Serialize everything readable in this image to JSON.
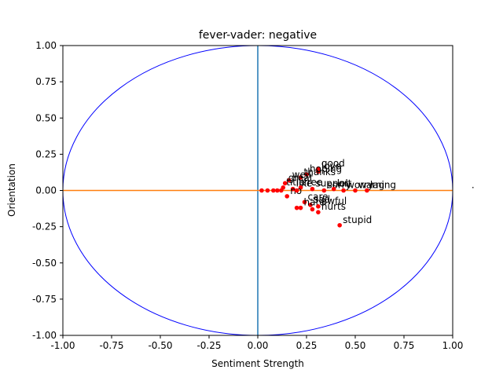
{
  "chart_data": {
    "type": "scatter",
    "title": "fever-vader: negative",
    "xlabel": "Sentiment Strength",
    "ylabel": "Orientation",
    "xlim": [
      -1.0,
      1.0
    ],
    "ylim": [
      -1.0,
      1.0
    ],
    "x_ticks": [
      "-1.00",
      "-0.75",
      "-0.50",
      "-0.25",
      "0.00",
      "0.25",
      "0.50",
      "0.75",
      "1.00"
    ],
    "y_ticks": [
      "1.00",
      "0.75",
      "0.50",
      "0.25",
      "0.00",
      "-0.25",
      "-0.50",
      "-0.75",
      "-1.00"
    ],
    "grid": false,
    "legend": "none",
    "reference": {
      "unit_circle": true,
      "circle_color": "#0000ff",
      "vertical_line": {
        "x": 0,
        "color": "#1f77b4"
      },
      "horizontal_line": {
        "y": 0,
        "color": "#ff7f0e"
      }
    },
    "marker_color": "#ff0000",
    "points": [
      {
        "x": 0.31,
        "y": 0.15,
        "label": "good"
      },
      {
        "x": 0.31,
        "y": 0.13,
        "label": "love"
      },
      {
        "x": 0.25,
        "y": 0.11,
        "label": "hoping"
      },
      {
        "x": 0.22,
        "y": 0.09,
        "label": "thanks"
      },
      {
        "x": 0.16,
        "y": 0.07,
        "label": "well"
      },
      {
        "x": 0.14,
        "y": 0.05,
        "label": "great"
      },
      {
        "x": 0.13,
        "y": 0.02,
        "label": "title"
      },
      {
        "x": 0.18,
        "y": 0.01,
        "label": "like"
      },
      {
        "x": 0.22,
        "y": 0.02,
        "label": "free"
      },
      {
        "x": 0.28,
        "y": 0.01,
        "label": "support"
      },
      {
        "x": 0.34,
        "y": 0.0,
        "label": "sorry"
      },
      {
        "x": 0.39,
        "y": 0.01,
        "label": "lol"
      },
      {
        "x": 0.44,
        "y": 0.0,
        "label": "worry"
      },
      {
        "x": 0.5,
        "y": 0.0,
        "label": "warning"
      },
      {
        "x": 0.56,
        "y": 0.0,
        "label": "lag"
      },
      {
        "x": 1.08,
        "y": 0.0,
        "label": "."
      },
      {
        "x": 0.15,
        "y": -0.04,
        "label": "no"
      },
      {
        "x": 0.24,
        "y": -0.08,
        "label": "care"
      },
      {
        "x": 0.27,
        "y": -0.1,
        "label": "sad"
      },
      {
        "x": 0.22,
        "y": -0.12,
        "label": "hate"
      },
      {
        "x": 0.31,
        "y": -0.11,
        "label": "awful"
      },
      {
        "x": 0.31,
        "y": -0.15,
        "label": "hurts"
      },
      {
        "x": 0.42,
        "y": -0.24,
        "label": "stupid"
      },
      {
        "x": 0.02,
        "y": 0.0,
        "label": ""
      },
      {
        "x": 0.05,
        "y": 0.0,
        "label": ""
      },
      {
        "x": 0.08,
        "y": 0.0,
        "label": ""
      },
      {
        "x": 0.1,
        "y": 0.0,
        "label": ""
      },
      {
        "x": 0.12,
        "y": 0.0,
        "label": ""
      },
      {
        "x": 0.2,
        "y": 0.0,
        "label": ""
      },
      {
        "x": 0.2,
        "y": -0.12,
        "label": ""
      },
      {
        "x": 0.28,
        "y": -0.13,
        "label": ""
      }
    ]
  }
}
